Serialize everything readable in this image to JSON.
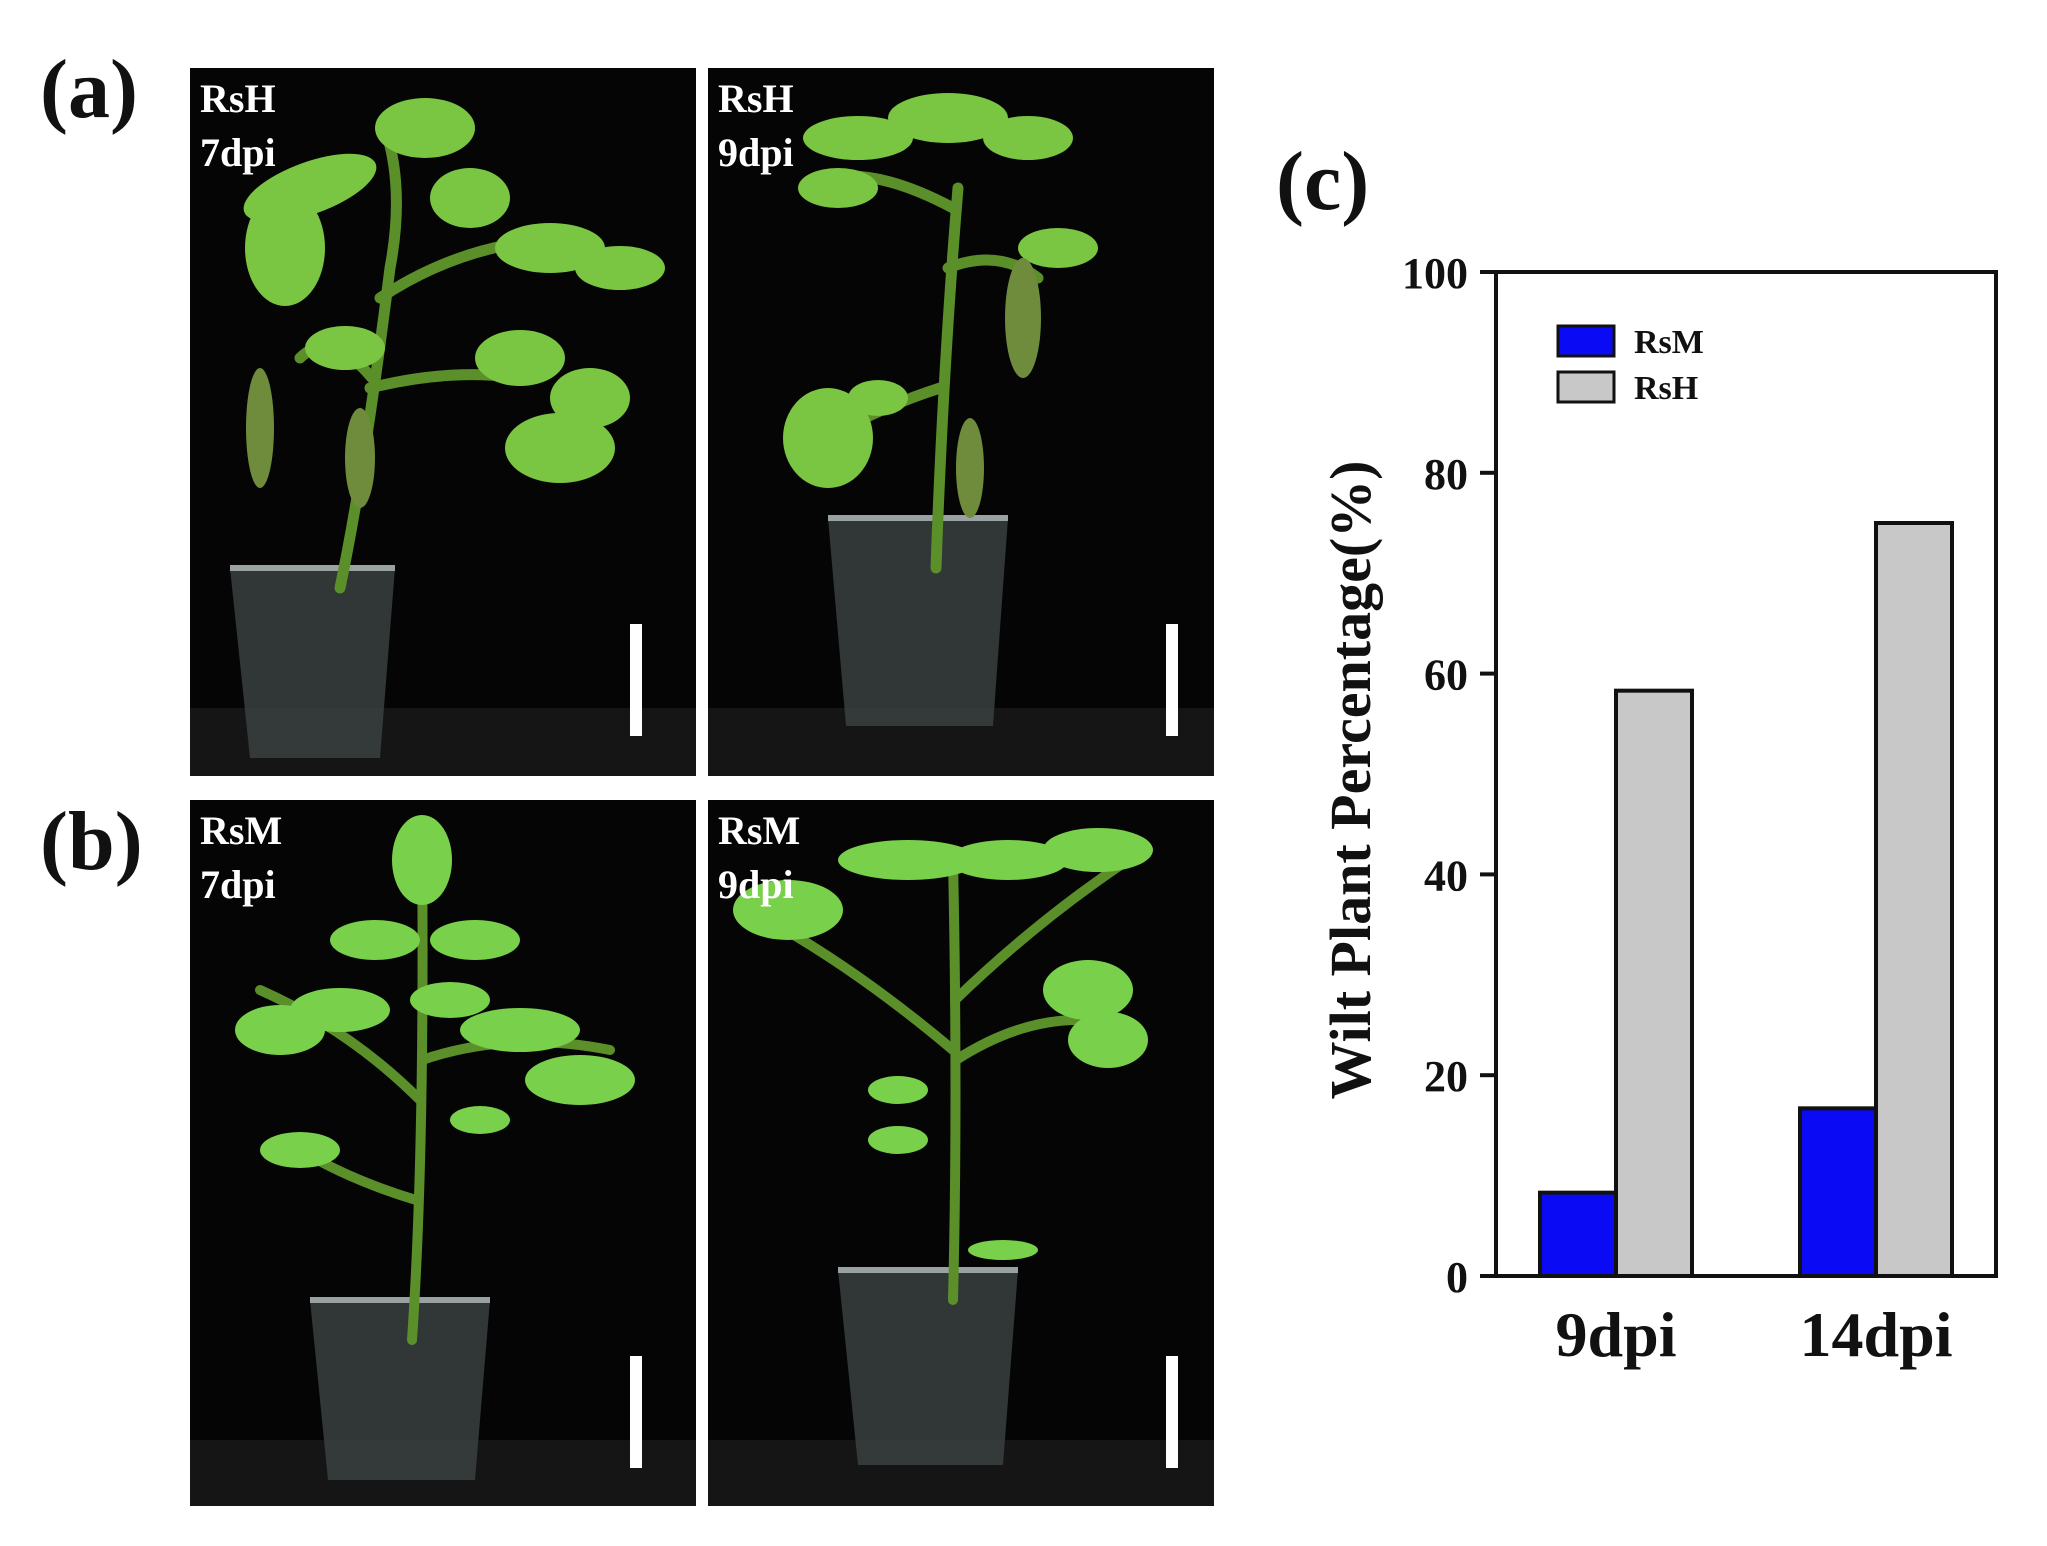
{
  "panels": {
    "a": {
      "letter": "(a)",
      "photos": [
        {
          "strain": "RsH",
          "time": "7dpi"
        },
        {
          "strain": "RsH",
          "time": "9dpi"
        }
      ]
    },
    "b": {
      "letter": "(b)",
      "photos": [
        {
          "strain": "RsM",
          "time": "7dpi"
        },
        {
          "strain": "RsM",
          "time": "9dpi"
        }
      ]
    },
    "c": {
      "letter": "(c)"
    }
  },
  "colors": {
    "rsm_bar": "#0a0af5",
    "rsh_bar": "#c8c8c8",
    "photo_background": "#050505",
    "leaf_healthy": "#6cc23a",
    "leaf_wilted": "#8fb84a"
  },
  "chart_data": {
    "type": "bar",
    "categories": [
      "9dpi",
      "14dpi"
    ],
    "series": [
      {
        "name": "RsM",
        "values": [
          8.3,
          16.7
        ]
      },
      {
        "name": "RsH",
        "values": [
          58.3,
          75.0
        ]
      }
    ],
    "ylabel": "Wilt Plant Percentage(%)",
    "xlabel": "",
    "ylim": [
      0,
      100
    ],
    "yticks": [
      0,
      20,
      40,
      60,
      80,
      100
    ],
    "grid": false,
    "legend_position": "top-left"
  }
}
